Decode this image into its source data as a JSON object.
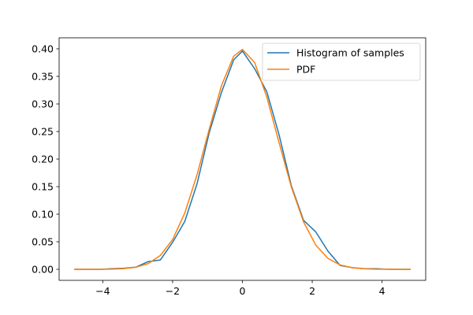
{
  "chart_data": {
    "type": "line",
    "title": "",
    "xlabel": "",
    "ylabel": "",
    "xlim": [
      -5.25,
      5.25
    ],
    "ylim": [
      -0.02,
      0.42
    ],
    "grid": false,
    "legend_position": "top-right",
    "x_ticks": [
      -4,
      -2,
      0,
      2,
      4
    ],
    "x_tick_labels": [
      "−4",
      "−2",
      "0",
      "2",
      "4"
    ],
    "y_ticks": [
      0.0,
      0.05,
      0.1,
      0.15,
      0.2,
      0.25,
      0.3,
      0.35,
      0.4
    ],
    "y_tick_labels": [
      "0.00",
      "0.05",
      "0.10",
      "0.15",
      "0.20",
      "0.25",
      "0.30",
      "0.35",
      "0.40"
    ],
    "x": [
      -4.8,
      -4.45,
      -4.1,
      -3.75,
      -3.4,
      -3.05,
      -2.7,
      -2.35,
      -2.0,
      -1.65,
      -1.3,
      -0.95,
      -0.6,
      -0.25,
      0.0,
      0.35,
      0.7,
      1.05,
      1.4,
      1.75,
      2.1,
      2.45,
      2.8,
      3.15,
      3.5,
      3.85,
      4.2,
      4.55,
      4.8
    ],
    "series": [
      {
        "name": "Histogram of samples",
        "color": "#1f77b4",
        "values": [
          0.0,
          0.0,
          0.0,
          0.001,
          0.002,
          0.004,
          0.014,
          0.017,
          0.049,
          0.087,
          0.155,
          0.248,
          0.321,
          0.38,
          0.396,
          0.364,
          0.322,
          0.244,
          0.152,
          0.089,
          0.068,
          0.033,
          0.007,
          0.003,
          0.001,
          0.001,
          0.0,
          0.0,
          0.0
        ]
      },
      {
        "name": "PDF",
        "color": "#ff7f0e",
        "values": [
          0.0,
          0.0,
          0.0,
          0.0003,
          0.0012,
          0.0038,
          0.0104,
          0.0252,
          0.054,
          0.1023,
          0.1714,
          0.2541,
          0.3332,
          0.3867,
          0.3989,
          0.3752,
          0.3123,
          0.2299,
          0.1497,
          0.0863,
          0.044,
          0.0198,
          0.0079,
          0.0028,
          0.0009,
          0.0002,
          0.0001,
          0.0,
          0.0
        ]
      }
    ]
  }
}
